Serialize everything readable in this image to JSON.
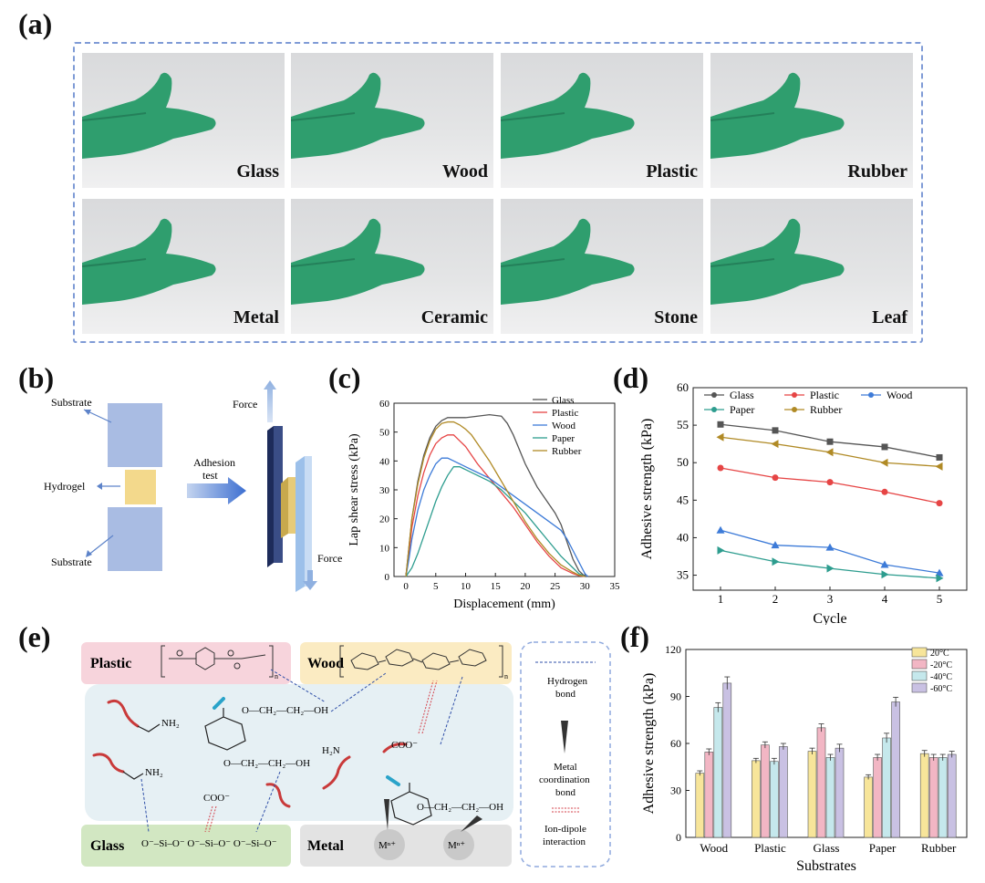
{
  "labels": {
    "a": "(a)",
    "b": "(b)",
    "c": "(c)",
    "d": "(d)",
    "e": "(e)",
    "f": "(f)"
  },
  "photos": [
    "Glass",
    "Wood",
    "Plastic",
    "Rubber",
    "Metal",
    "Ceramic",
    "Stone",
    "Leaf"
  ],
  "diagram_b": {
    "substrate_top": "Substrate",
    "hydrogel": "Hydrogel",
    "substrate_bottom": "Substrate",
    "adhesion_test": "Adhesion\ntest",
    "force_top": "Force",
    "force_bottom": "Force"
  },
  "scheme_e": {
    "plastic": "Plastic",
    "wood": "Wood",
    "glass": "Glass",
    "metal": "Metal",
    "legend": [
      "Hydrogen\nbond",
      "Metal\ncoordination\nbond",
      "Ion-dipole\ninteraction"
    ],
    "groups": {
      "oh1": "O—CH₂—CH₂—OH",
      "oh2": "O—CH₂—CH₂—OH",
      "oh3": "O—CH₂—CH₂—OH",
      "nh2a": "NH₂",
      "nh2b": "NH₂",
      "h2n": "H₂N",
      "coo1": "COO⁻",
      "coo2": "COO⁻",
      "mn": "Mⁿ⁺"
    }
  },
  "chart_data": [
    {
      "id": "c",
      "type": "line",
      "xlabel": "Displacement (mm)",
      "ylabel": "Lap shear stress (kPa)",
      "xlim": [
        -2,
        35
      ],
      "ylim": [
        0,
        60
      ],
      "xticks": [
        0,
        5,
        10,
        15,
        20,
        25,
        30,
        35
      ],
      "yticks": [
        0,
        10,
        20,
        30,
        40,
        50,
        60
      ],
      "legend_position": "top-right",
      "series": [
        {
          "name": "Glass",
          "color": "#555555",
          "x": [
            0,
            0.5,
            1,
            2,
            3,
            4,
            5,
            6,
            7,
            8,
            10,
            12,
            14,
            16,
            17,
            18,
            19,
            20,
            21,
            22,
            23,
            24,
            25,
            26,
            27,
            28,
            29,
            30
          ],
          "y": [
            0,
            10,
            20,
            33,
            42,
            48,
            52,
            54,
            55,
            55,
            55,
            55.5,
            56,
            55.5,
            53,
            49,
            44,
            39,
            35,
            31,
            28,
            25,
            22,
            18,
            12,
            6,
            2,
            0
          ]
        },
        {
          "name": "Plastic",
          "color": "#e64545",
          "x": [
            0,
            0.5,
            1,
            2,
            3,
            4,
            5,
            6,
            7,
            8,
            9,
            10,
            11,
            12,
            14,
            16,
            18,
            20,
            22,
            24,
            26,
            28,
            29,
            30
          ],
          "y": [
            0,
            8,
            17,
            28,
            36,
            42,
            46,
            48,
            49,
            49,
            47,
            45,
            42,
            39,
            34,
            29,
            24,
            18,
            12,
            7,
            3,
            1,
            0.3,
            0
          ]
        },
        {
          "name": "Wood",
          "color": "#3d7bd8",
          "x": [
            0,
            0.5,
            1,
            2,
            3,
            4,
            5,
            6,
            7,
            8,
            10,
            12,
            14,
            16,
            18,
            20,
            22,
            24,
            26,
            27,
            28,
            29,
            30,
            30.5
          ],
          "y": [
            0,
            6,
            13,
            23,
            30,
            35,
            39,
            41,
            41,
            40,
            38,
            36,
            34,
            31,
            28,
            25,
            22,
            19,
            16,
            13,
            9,
            5,
            1,
            0
          ]
        },
        {
          "name": "Paper",
          "color": "#2e9d8f",
          "x": [
            0,
            1,
            2,
            3,
            4,
            5,
            6,
            7,
            8,
            9,
            10,
            12,
            14,
            16,
            18,
            20,
            22,
            24,
            26,
            28,
            29,
            30
          ],
          "y": [
            0,
            3,
            8,
            14,
            20,
            26,
            31,
            35,
            38,
            38,
            37,
            35,
            33,
            30,
            26,
            22,
            17,
            12,
            7,
            3,
            1,
            0
          ]
        },
        {
          "name": "Rubber",
          "color": "#b08a25",
          "x": [
            0,
            0.5,
            1,
            2,
            3,
            4,
            5,
            6,
            7,
            8,
            9,
            10,
            11,
            12,
            14,
            16,
            18,
            20,
            22,
            24,
            26,
            28,
            29,
            30
          ],
          "y": [
            0,
            10,
            20,
            32,
            41,
            47,
            51,
            53,
            53.5,
            53.5,
            52.5,
            51,
            49,
            46,
            40,
            33,
            26,
            19,
            13,
            8,
            4,
            1.5,
            0.5,
            0
          ]
        }
      ]
    },
    {
      "id": "d",
      "type": "line",
      "xlabel": "Cycle",
      "ylabel": "Adhesive strength (kPa)",
      "xlim": [
        0.5,
        5.5
      ],
      "ylim": [
        33,
        60
      ],
      "xticks": [
        1,
        2,
        3,
        4,
        5
      ],
      "yticks": [
        35,
        40,
        45,
        50,
        55,
        60
      ],
      "legend_position": "top",
      "categories": [
        1,
        2,
        3,
        4,
        5
      ],
      "series": [
        {
          "name": "Glass",
          "color": "#555555",
          "marker": "square",
          "values": [
            55.1,
            54.3,
            52.8,
            52.1,
            50.7
          ]
        },
        {
          "name": "Plastic",
          "color": "#e64545",
          "marker": "circle",
          "values": [
            49.3,
            48.0,
            47.4,
            46.1,
            44.6
          ]
        },
        {
          "name": "Wood",
          "color": "#3d7bd8",
          "marker": "triangle-up",
          "values": [
            41.0,
            39.0,
            38.7,
            36.4,
            35.3
          ]
        },
        {
          "name": "Paper",
          "color": "#2e9d8f",
          "marker": "triangle-right",
          "values": [
            38.3,
            36.8,
            35.9,
            35.1,
            34.6
          ]
        },
        {
          "name": "Rubber",
          "color": "#b08a25",
          "marker": "triangle-left",
          "values": [
            53.4,
            52.5,
            51.4,
            50.0,
            49.5
          ]
        }
      ]
    },
    {
      "id": "f",
      "type": "bar",
      "xlabel": "Substrates",
      "ylabel": "Adhesive strength (kPa)",
      "ylim": [
        0,
        120
      ],
      "yticks": [
        0,
        30,
        60,
        90,
        120
      ],
      "legend_position": "top-right",
      "categories": [
        "Wood",
        "Plastic",
        "Glass",
        "Paper",
        "Rubber"
      ],
      "series": [
        {
          "name": "20°C",
          "color": "#f7e59a",
          "values": [
            41,
            49,
            55,
            38.5,
            53.5
          ],
          "errors": [
            1.5,
            1.5,
            2,
            1.5,
            2
          ]
        },
        {
          "name": "-20°C",
          "color": "#f2b6c4",
          "values": [
            54.5,
            59,
            70,
            51,
            51
          ],
          "errors": [
            2,
            2,
            2.5,
            2,
            2
          ]
        },
        {
          "name": "-40°C",
          "color": "#c5e8ec",
          "values": [
            83,
            48.5,
            51,
            63.5,
            51
          ],
          "errors": [
            3,
            2,
            2,
            3,
            2
          ]
        },
        {
          "name": "-60°C",
          "color": "#c9c1e3",
          "values": [
            98.5,
            58,
            57,
            86.5,
            53
          ],
          "errors": [
            4,
            2,
            2.5,
            3,
            2
          ]
        }
      ]
    }
  ]
}
